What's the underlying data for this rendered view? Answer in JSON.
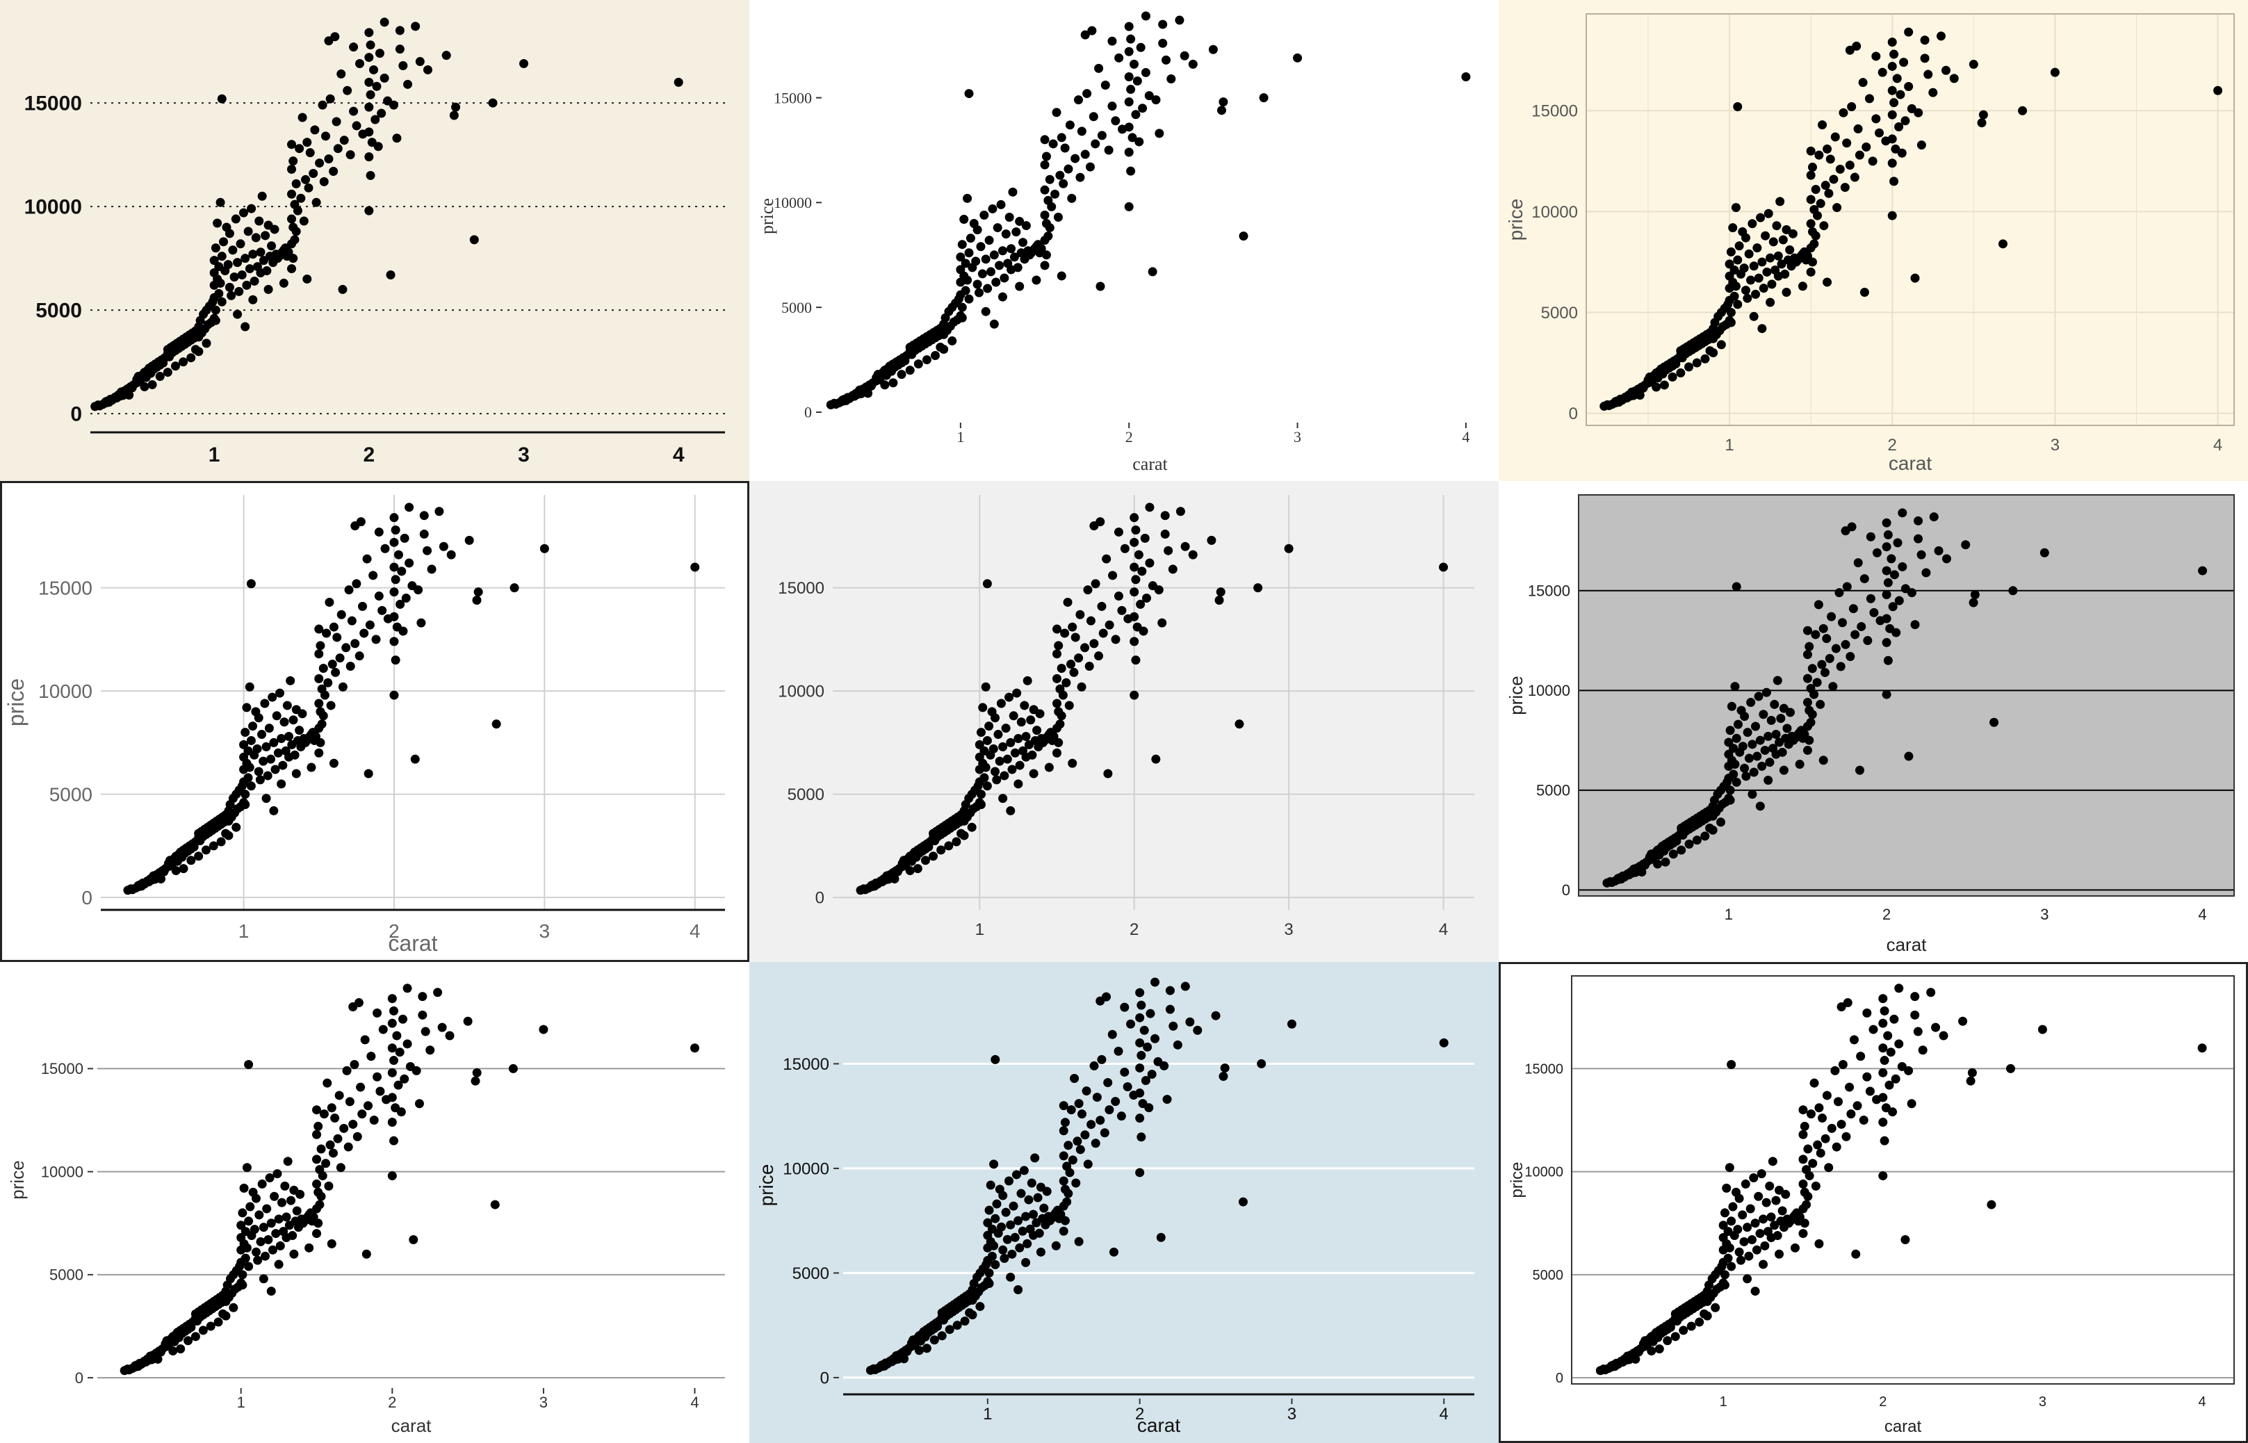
{
  "chart_data": [
    {
      "type": "scatter",
      "style": "economist",
      "background": "#f5efe2",
      "panel_fill": "#f5efe2",
      "grid": "dotted-horizontal",
      "xlabel": "",
      "ylabel": "",
      "xticks": [
        1,
        2,
        3,
        4
      ],
      "yticks": [
        0,
        5000,
        10000,
        15000
      ],
      "xlim": [
        0.2,
        4.3
      ],
      "ylim": [
        -900,
        19300
      ]
    },
    {
      "type": "scatter",
      "style": "tufte",
      "background": "#ffffff",
      "panel_fill": "#ffffff",
      "grid": "none",
      "xlabel": "carat",
      "ylabel": "price",
      "xticks": [
        1,
        2,
        3,
        4
      ],
      "yticks": [
        0,
        5000,
        10000,
        15000
      ],
      "xlim": [
        0.2,
        4.05
      ],
      "ylim": [
        -300,
        19000
      ]
    },
    {
      "type": "scatter",
      "style": "solarized",
      "background": "#fdf6e3",
      "panel_fill": "#fdf6e3",
      "grid": "both",
      "xlabel": "carat",
      "ylabel": "price",
      "xticks": [
        1,
        2,
        3,
        4
      ],
      "yticks": [
        0,
        5000,
        10000,
        15000
      ],
      "xlim": [
        0.12,
        4.1
      ],
      "ylim": [
        -600,
        19800
      ]
    },
    {
      "type": "scatter",
      "style": "fivethirtyeight-light",
      "background": "#ffffff",
      "panel_fill": "#ffffff",
      "grid": "both",
      "xlabel": "carat",
      "ylabel": "price",
      "xticks": [
        1,
        2,
        3,
        4
      ],
      "yticks": [
        0,
        5000,
        10000,
        15000
      ],
      "xlim": [
        0.05,
        4.2
      ],
      "ylim": [
        -600,
        19500
      ]
    },
    {
      "type": "scatter",
      "style": "fivethirtyeight",
      "background": "#f0f0f0",
      "panel_fill": "#f0f0f0",
      "grid": "both",
      "xlabel": "",
      "ylabel": "",
      "xticks": [
        1,
        2,
        3,
        4
      ],
      "yticks": [
        0,
        5000,
        10000,
        15000
      ],
      "xlim": [
        0.05,
        4.2
      ],
      "ylim": [
        -600,
        19500
      ]
    },
    {
      "type": "scatter",
      "style": "excel",
      "background": "#ffffff",
      "panel_fill": "#c0c0c0",
      "grid": "horizontal",
      "xlabel": "carat",
      "ylabel": "price",
      "xticks": [
        1,
        2,
        3,
        4
      ],
      "yticks": [
        0,
        5000,
        10000,
        15000
      ],
      "xlim": [
        0.05,
        4.2
      ],
      "ylim": [
        -300,
        19800
      ]
    },
    {
      "type": "scatter",
      "style": "stata",
      "background": "#ffffff",
      "panel_fill": "#ffffff",
      "grid": "horizontal",
      "xlabel": "carat",
      "ylabel": "price",
      "xticks": [
        1,
        2,
        3,
        4
      ],
      "yticks": [
        0,
        5000,
        10000,
        15000
      ],
      "xlim": [
        0.05,
        4.2
      ],
      "ylim": [
        -300,
        19500
      ]
    },
    {
      "type": "scatter",
      "style": "economist-blue",
      "background": "#d5e4eb",
      "panel_fill": "#d5e4eb",
      "grid": "horizontal",
      "xlabel": "carat",
      "ylabel": "price",
      "xticks": [
        1,
        2,
        3,
        4
      ],
      "yticks": [
        0,
        5000,
        10000,
        15000
      ],
      "xlim": [
        0.05,
        4.2
      ],
      "ylim": [
        -800,
        19200
      ]
    },
    {
      "type": "scatter",
      "style": "few",
      "background": "#ffffff",
      "panel_fill": "#ffffff",
      "grid": "horizontal",
      "xlabel": "carat",
      "ylabel": "price",
      "xticks": [
        1,
        2,
        3,
        4
      ],
      "yticks": [
        0,
        5000,
        10000,
        15000
      ],
      "xlim": [
        0.05,
        4.2
      ],
      "ylim": [
        -300,
        19500
      ]
    }
  ],
  "points": [
    [
      0.23,
      350
    ],
    [
      0.25,
      420
    ],
    [
      0.26,
      380
    ],
    [
      0.28,
      450
    ],
    [
      0.3,
      520
    ],
    [
      0.3,
      580
    ],
    [
      0.31,
      610
    ],
    [
      0.32,
      550
    ],
    [
      0.33,
      700
    ],
    [
      0.34,
      650
    ],
    [
      0.35,
      720
    ],
    [
      0.36,
      800
    ],
    [
      0.37,
      760
    ],
    [
      0.38,
      900
    ],
    [
      0.39,
      850
    ],
    [
      0.4,
      950
    ],
    [
      0.4,
      1050
    ],
    [
      0.41,
      880
    ],
    [
      0.42,
      1100
    ],
    [
      0.43,
      990
    ],
    [
      0.44,
      1200
    ],
    [
      0.45,
      1150
    ],
    [
      0.46,
      1300
    ],
    [
      0.47,
      1250
    ],
    [
      0.48,
      1400
    ],
    [
      0.5,
      1500
    ],
    [
      0.5,
      1650
    ],
    [
      0.51,
      1800
    ],
    [
      0.52,
      1550
    ],
    [
      0.53,
      1700
    ],
    [
      0.54,
      1900
    ],
    [
      0.55,
      2000
    ],
    [
      0.56,
      1750
    ],
    [
      0.57,
      2100
    ],
    [
      0.58,
      2200
    ],
    [
      0.59,
      1950
    ],
    [
      0.6,
      2300
    ],
    [
      0.61,
      2150
    ],
    [
      0.62,
      2400
    ],
    [
      0.63,
      2250
    ],
    [
      0.64,
      2500
    ],
    [
      0.65,
      2350
    ],
    [
      0.66,
      2600
    ],
    [
      0.67,
      2450
    ],
    [
      0.68,
      2700
    ],
    [
      0.7,
      2900
    ],
    [
      0.7,
      3100
    ],
    [
      0.71,
      2750
    ],
    [
      0.72,
      3200
    ],
    [
      0.73,
      2950
    ],
    [
      0.74,
      3300
    ],
    [
      0.75,
      3050
    ],
    [
      0.76,
      3400
    ],
    [
      0.77,
      3150
    ],
    [
      0.78,
      3500
    ],
    [
      0.79,
      3250
    ],
    [
      0.8,
      3600
    ],
    [
      0.81,
      3350
    ],
    [
      0.82,
      3700
    ],
    [
      0.83,
      3450
    ],
    [
      0.84,
      3800
    ],
    [
      0.85,
      3550
    ],
    [
      0.86,
      3900
    ],
    [
      0.87,
      3650
    ],
    [
      0.88,
      4000
    ],
    [
      0.9,
      4200
    ],
    [
      0.9,
      3700
    ],
    [
      0.91,
      4500
    ],
    [
      0.92,
      3900
    ],
    [
      0.93,
      4800
    ],
    [
      0.94,
      4100
    ],
    [
      0.95,
      5000
    ],
    [
      0.96,
      4300
    ],
    [
      0.97,
      5200
    ],
    [
      0.98,
      4400
    ],
    [
      0.99,
      5400
    ],
    [
      1.0,
      4600
    ],
    [
      1.0,
      5600
    ],
    [
      1.0,
      6200
    ],
    [
      1.0,
      6800
    ],
    [
      1.0,
      7400
    ],
    [
      1.01,
      8000
    ],
    [
      1.01,
      5000
    ],
    [
      1.01,
      4500
    ],
    [
      1.02,
      6500
    ],
    [
      1.02,
      9200
    ],
    [
      1.03,
      5800
    ],
    [
      1.03,
      7100
    ],
    [
      1.04,
      6300
    ],
    [
      1.04,
      10200
    ],
    [
      1.05,
      7600
    ],
    [
      1.05,
      5400
    ],
    [
      1.06,
      8300
    ],
    [
      1.07,
      6900
    ],
    [
      1.08,
      9000
    ],
    [
      1.09,
      7200
    ],
    [
      1.1,
      6100
    ],
    [
      1.1,
      8700
    ],
    [
      1.11,
      5700
    ],
    [
      1.12,
      7900
    ],
    [
      1.13,
      6600
    ],
    [
      1.14,
      9400
    ],
    [
      1.15,
      7300
    ],
    [
      1.16,
      5900
    ],
    [
      1.17,
      8200
    ],
    [
      1.18,
      6700
    ],
    [
      1.19,
      9700
    ],
    [
      1.2,
      7500
    ],
    [
      1.21,
      6200
    ],
    [
      1.22,
      8800
    ],
    [
      1.23,
      7000
    ],
    [
      1.24,
      9900
    ],
    [
      1.25,
      7700
    ],
    [
      1.26,
      6400
    ],
    [
      1.27,
      8500
    ],
    [
      1.28,
      7100
    ],
    [
      1.29,
      9300
    ],
    [
      1.3,
      7800
    ],
    [
      1.3,
      6800
    ],
    [
      1.31,
      10500
    ],
    [
      1.32,
      7400
    ],
    [
      1.33,
      8600
    ],
    [
      1.34,
      6900
    ],
    [
      1.35,
      9100
    ],
    [
      1.36,
      7600
    ],
    [
      1.37,
      8100
    ],
    [
      1.38,
      7300
    ],
    [
      1.39,
      8900
    ],
    [
      1.4,
      7700
    ],
    [
      1.41,
      7500
    ],
    [
      1.42,
      7600
    ],
    [
      1.43,
      7700
    ],
    [
      1.44,
      7800
    ],
    [
      1.45,
      7900
    ],
    [
      1.46,
      8000
    ],
    [
      1.47,
      7600
    ],
    [
      1.48,
      7800
    ],
    [
      1.5,
      7000
    ],
    [
      1.5,
      8200
    ],
    [
      1.5,
      9400
    ],
    [
      1.5,
      10600
    ],
    [
      1.5,
      11800
    ],
    [
      1.5,
      13000
    ],
    [
      1.51,
      7500
    ],
    [
      1.51,
      9000
    ],
    [
      1.51,
      12200
    ],
    [
      1.52,
      8400
    ],
    [
      1.52,
      10100
    ],
    [
      1.53,
      11100
    ],
    [
      1.53,
      8800
    ],
    [
      1.54,
      9800
    ],
    [
      1.55,
      12800
    ],
    [
      1.56,
      10400
    ],
    [
      1.57,
      14300
    ],
    [
      1.58,
      9300
    ],
    [
      1.59,
      11300
    ],
    [
      1.6,
      13100
    ],
    [
      1.61,
      10900
    ],
    [
      1.62,
      12600
    ],
    [
      1.64,
      11600
    ],
    [
      1.65,
      13700
    ],
    [
      1.66,
      10200
    ],
    [
      1.68,
      12100
    ],
    [
      1.7,
      14900
    ],
    [
      1.71,
      11200
    ],
    [
      1.72,
      13400
    ],
    [
      1.74,
      12300
    ],
    [
      1.75,
      15200
    ],
    [
      1.77,
      11700
    ],
    [
      1.79,
      14100
    ],
    [
      1.8,
      12800
    ],
    [
      1.82,
      16400
    ],
    [
      1.84,
      13200
    ],
    [
      1.86,
      15600
    ],
    [
      1.88,
      12500
    ],
    [
      1.9,
      14600
    ],
    [
      1.92,
      13900
    ],
    [
      1.94,
      16900
    ],
    [
      1.96,
      13500
    ],
    [
      2.0,
      9800
    ],
    [
      2.0,
      12400
    ],
    [
      2.0,
      13600
    ],
    [
      2.0,
      14800
    ],
    [
      2.0,
      16000
    ],
    [
      2.0,
      17200
    ],
    [
      2.0,
      18400
    ],
    [
      2.01,
      11500
    ],
    [
      2.01,
      15400
    ],
    [
      2.01,
      17800
    ],
    [
      2.02,
      13100
    ],
    [
      2.03,
      16600
    ],
    [
      2.04,
      14200
    ],
    [
      2.05,
      15800
    ],
    [
      2.06,
      12900
    ],
    [
      2.07,
      17400
    ],
    [
      2.08,
      14500
    ],
    [
      2.1,
      16200
    ],
    [
      2.12,
      15100
    ],
    [
      2.14,
      6700
    ],
    [
      2.16,
      14900
    ],
    [
      2.18,
      13300
    ],
    [
      2.2,
      17600
    ],
    [
      2.22,
      16800
    ],
    [
      2.25,
      15900
    ],
    [
      2.3,
      18700
    ],
    [
      2.33,
      17000
    ],
    [
      2.38,
      16600
    ],
    [
      2.5,
      17300
    ],
    [
      2.55,
      14400
    ],
    [
      2.56,
      14800
    ],
    [
      2.68,
      8400
    ],
    [
      2.8,
      15000
    ],
    [
      3.0,
      16900
    ],
    [
      4.0,
      16000
    ],
    [
      1.83,
      6000
    ],
    [
      1.6,
      6500
    ],
    [
      1.05,
      15200
    ],
    [
      1.74,
      18000
    ],
    [
      1.78,
      18200
    ],
    [
      2.2,
      18500
    ],
    [
      2.1,
      18900
    ],
    [
      1.9,
      17700
    ],
    [
      0.95,
      3400
    ],
    [
      0.88,
      3100
    ],
    [
      1.15,
      4800
    ],
    [
      1.25,
      5500
    ],
    [
      1.35,
      6000
    ],
    [
      1.45,
      6300
    ],
    [
      1.2,
      4200
    ],
    [
      0.75,
      2300
    ],
    [
      0.85,
      2700
    ],
    [
      0.65,
      1800
    ],
    [
      0.55,
      1300
    ],
    [
      0.45,
      900
    ],
    [
      0.6,
      1400
    ],
    [
      0.7,
      2000
    ],
    [
      0.8,
      2500
    ],
    [
      0.9,
      3000
    ]
  ]
}
